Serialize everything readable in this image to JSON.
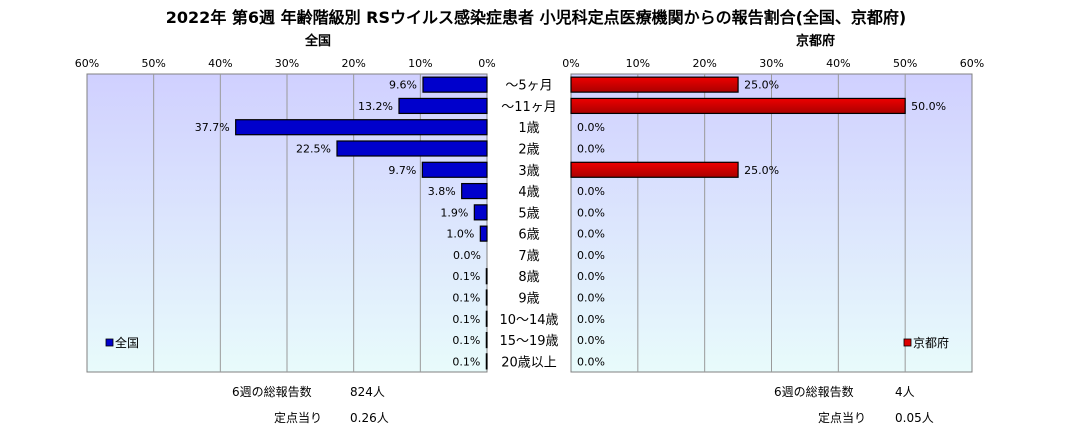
{
  "title": "2022年 第6週 年齢階級別 RSウイルス感染症患者 小児科定点医療機関からの報告割合(全国、京都府)",
  "chart_data": [
    {
      "type": "bar",
      "orientation": "horizontal",
      "direction": "right-to-left",
      "title": "全国",
      "legend": "全国",
      "legend_position": "bottom-left",
      "color": "#0000cc",
      "xlim": [
        0,
        60
      ],
      "ticks": [
        "60%",
        "50%",
        "40%",
        "30%",
        "20%",
        "10%",
        "0%"
      ],
      "categories": [
        "～5ヶ月",
        "～11ヶ月",
        "1歳",
        "2歳",
        "3歳",
        "4歳",
        "5歳",
        "6歳",
        "7歳",
        "8歳",
        "9歳",
        "10～14歳",
        "15～19歳",
        "20歳以上"
      ],
      "values": [
        9.6,
        13.2,
        37.7,
        22.5,
        9.7,
        3.8,
        1.9,
        1.0,
        0.0,
        0.1,
        0.1,
        0.1,
        0.1,
        0.1
      ],
      "labels": [
        "9.6%",
        "13.2%",
        "37.7%",
        "22.5%",
        "9.7%",
        "3.8%",
        "1.9%",
        "1.0%",
        "0.0%",
        "0.1%",
        "0.1%",
        "0.1%",
        "0.1%",
        "0.1%"
      ],
      "grid": true
    },
    {
      "type": "bar",
      "orientation": "horizontal",
      "direction": "left-to-right",
      "title": "京都府",
      "legend": "京都府",
      "legend_position": "bottom-right",
      "color": "#dd0000",
      "xlim": [
        0,
        60
      ],
      "ticks": [
        "0%",
        "10%",
        "20%",
        "30%",
        "40%",
        "50%",
        "60%"
      ],
      "categories": [
        "～5ヶ月",
        "～11ヶ月",
        "1歳",
        "2歳",
        "3歳",
        "4歳",
        "5歳",
        "6歳",
        "7歳",
        "8歳",
        "9歳",
        "10～14歳",
        "15～19歳",
        "20歳以上"
      ],
      "values": [
        25.0,
        50.0,
        0.0,
        0.0,
        25.0,
        0.0,
        0.0,
        0.0,
        0.0,
        0.0,
        0.0,
        0.0,
        0.0,
        0.0
      ],
      "labels": [
        "25.0%",
        "50.0%",
        "0.0%",
        "0.0%",
        "25.0%",
        "0.0%",
        "0.0%",
        "0.0%",
        "0.0%",
        "0.0%",
        "0.0%",
        "0.0%",
        "0.0%",
        "0.0%"
      ],
      "grid": true
    }
  ],
  "summary": {
    "left": {
      "total_label": "6週の総報告数",
      "total_value": "824人",
      "per_label": "定点当り",
      "per_value": "0.26人"
    },
    "right": {
      "total_label": "6週の総報告数",
      "total_value": "4人",
      "per_label": "定点当り",
      "per_value": "0.05人"
    }
  }
}
